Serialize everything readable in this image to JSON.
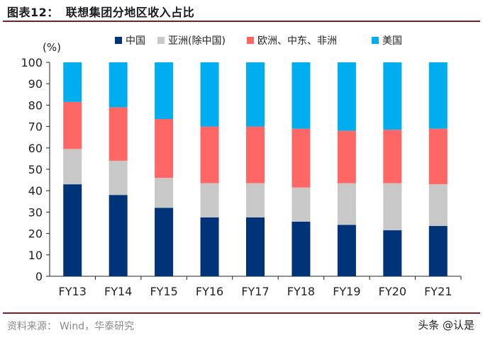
{
  "header": {
    "label": "图表12：",
    "title": "联想集团分地区收入占比"
  },
  "footer": {
    "source_label": "资料来源：",
    "source": "Wind，华泰研究",
    "watermark": "头条 @认是"
  },
  "colors": {
    "china": "#003378",
    "asia": "#c8c8c8",
    "emea": "#ff6666",
    "us": "#00aeef",
    "rule": "#7a1f24"
  },
  "chart_data": {
    "type": "bar",
    "stacked": true,
    "ylabel": "(%)",
    "ylim": [
      0,
      100
    ],
    "yticks": [
      0,
      10,
      20,
      30,
      40,
      50,
      60,
      70,
      80,
      90,
      100
    ],
    "legend_position": "top",
    "categories": [
      "FY13",
      "FY14",
      "FY15",
      "FY16",
      "FY17",
      "FY18",
      "FY19",
      "FY20",
      "FY21"
    ],
    "series": [
      {
        "name": "中国",
        "color": "#003378",
        "values": [
          43,
          38,
          32,
          27.5,
          27.5,
          25.5,
          24,
          21.5,
          23.5
        ]
      },
      {
        "name": "亚洲(除中国)",
        "color": "#c8c8c8",
        "values": [
          16.5,
          16,
          14,
          16,
          16,
          16,
          19.5,
          22,
          19.5
        ]
      },
      {
        "name": "欧洲、中东、非洲",
        "color": "#ff6666",
        "values": [
          22,
          25,
          27.5,
          26.5,
          26.5,
          27.5,
          24.5,
          25,
          26
        ]
      },
      {
        "name": "美国",
        "color": "#00aeef",
        "values": [
          18.5,
          21,
          26.5,
          30,
          30,
          31,
          32,
          31.5,
          31
        ]
      }
    ]
  }
}
